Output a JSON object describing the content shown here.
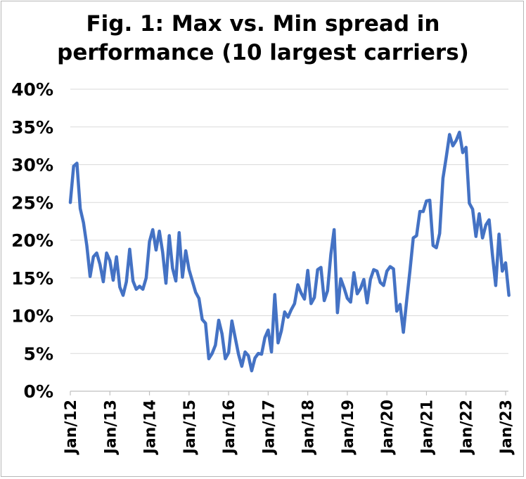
{
  "chart_data": {
    "type": "line",
    "title": "Fig. 1: Max vs. Min spread in\nperformance (10 largest carriers)",
    "xlabel": "",
    "ylabel": "",
    "ylim": [
      0,
      40
    ],
    "y_tick_labels": [
      "0%",
      "5%",
      "10%",
      "15%",
      "20%",
      "25%",
      "30%",
      "35%",
      "40%"
    ],
    "y_tick_values": [
      0,
      5,
      10,
      15,
      20,
      25,
      30,
      35,
      40
    ],
    "x_tick_labels": [
      "Jan/12",
      "Jan/13",
      "Jan/14",
      "Jan/15",
      "Jan/16",
      "Jan/17",
      "Jan/18",
      "Jan/19",
      "Jan/20",
      "Jan/21",
      "Jan/22",
      "Jan/23"
    ],
    "grid": true,
    "legend": "none",
    "color": "#4472C4",
    "series": [
      {
        "start": "Jan/12",
        "frequency": "monthly",
        "values": [
          25.0,
          29.8,
          30.2,
          24.2,
          22.3,
          19.3,
          15.2,
          17.8,
          18.3,
          16.8,
          14.5,
          18.3,
          17.3,
          14.7,
          17.8,
          13.8,
          12.7,
          14.5,
          18.8,
          14.6,
          13.5,
          13.9,
          13.5,
          15.0,
          19.8,
          21.4,
          18.7,
          21.2,
          18.4,
          14.3,
          20.6,
          16.3,
          14.6,
          21.0,
          15.1,
          18.6,
          16.1,
          14.6,
          13.1,
          12.3,
          9.5,
          9.0,
          4.3,
          5.0,
          6.1,
          9.4,
          7.6,
          4.3,
          5.1,
          9.3,
          7.1,
          4.9,
          3.3,
          5.2,
          4.7,
          2.7,
          4.4,
          5.0,
          4.9,
          7.1,
          8.1,
          5.2,
          12.8,
          6.4,
          8.0,
          10.5,
          9.8,
          10.8,
          11.6,
          14.1,
          13.0,
          12.2,
          16.0,
          11.6,
          12.4,
          16.1,
          16.4,
          12.0,
          13.3,
          18.1,
          21.4,
          10.4,
          14.9,
          13.7,
          12.3,
          11.8,
          15.7,
          12.9,
          13.6,
          14.8,
          11.7,
          14.8,
          16.1,
          15.9,
          14.4,
          14.0,
          15.9,
          16.5,
          16.2,
          10.6,
          11.5,
          7.8,
          12.0,
          16.0,
          20.3,
          20.6,
          23.8,
          23.8,
          25.2,
          25.3,
          19.3,
          19.0,
          20.9,
          28.2,
          31.0,
          34.0,
          32.5,
          33.2,
          34.3,
          31.6,
          32.3,
          24.9,
          24.1,
          20.5,
          23.5,
          20.3,
          22.0,
          22.7,
          18.1,
          14.0,
          20.8,
          15.9,
          17.0,
          12.7
        ]
      }
    ]
  }
}
